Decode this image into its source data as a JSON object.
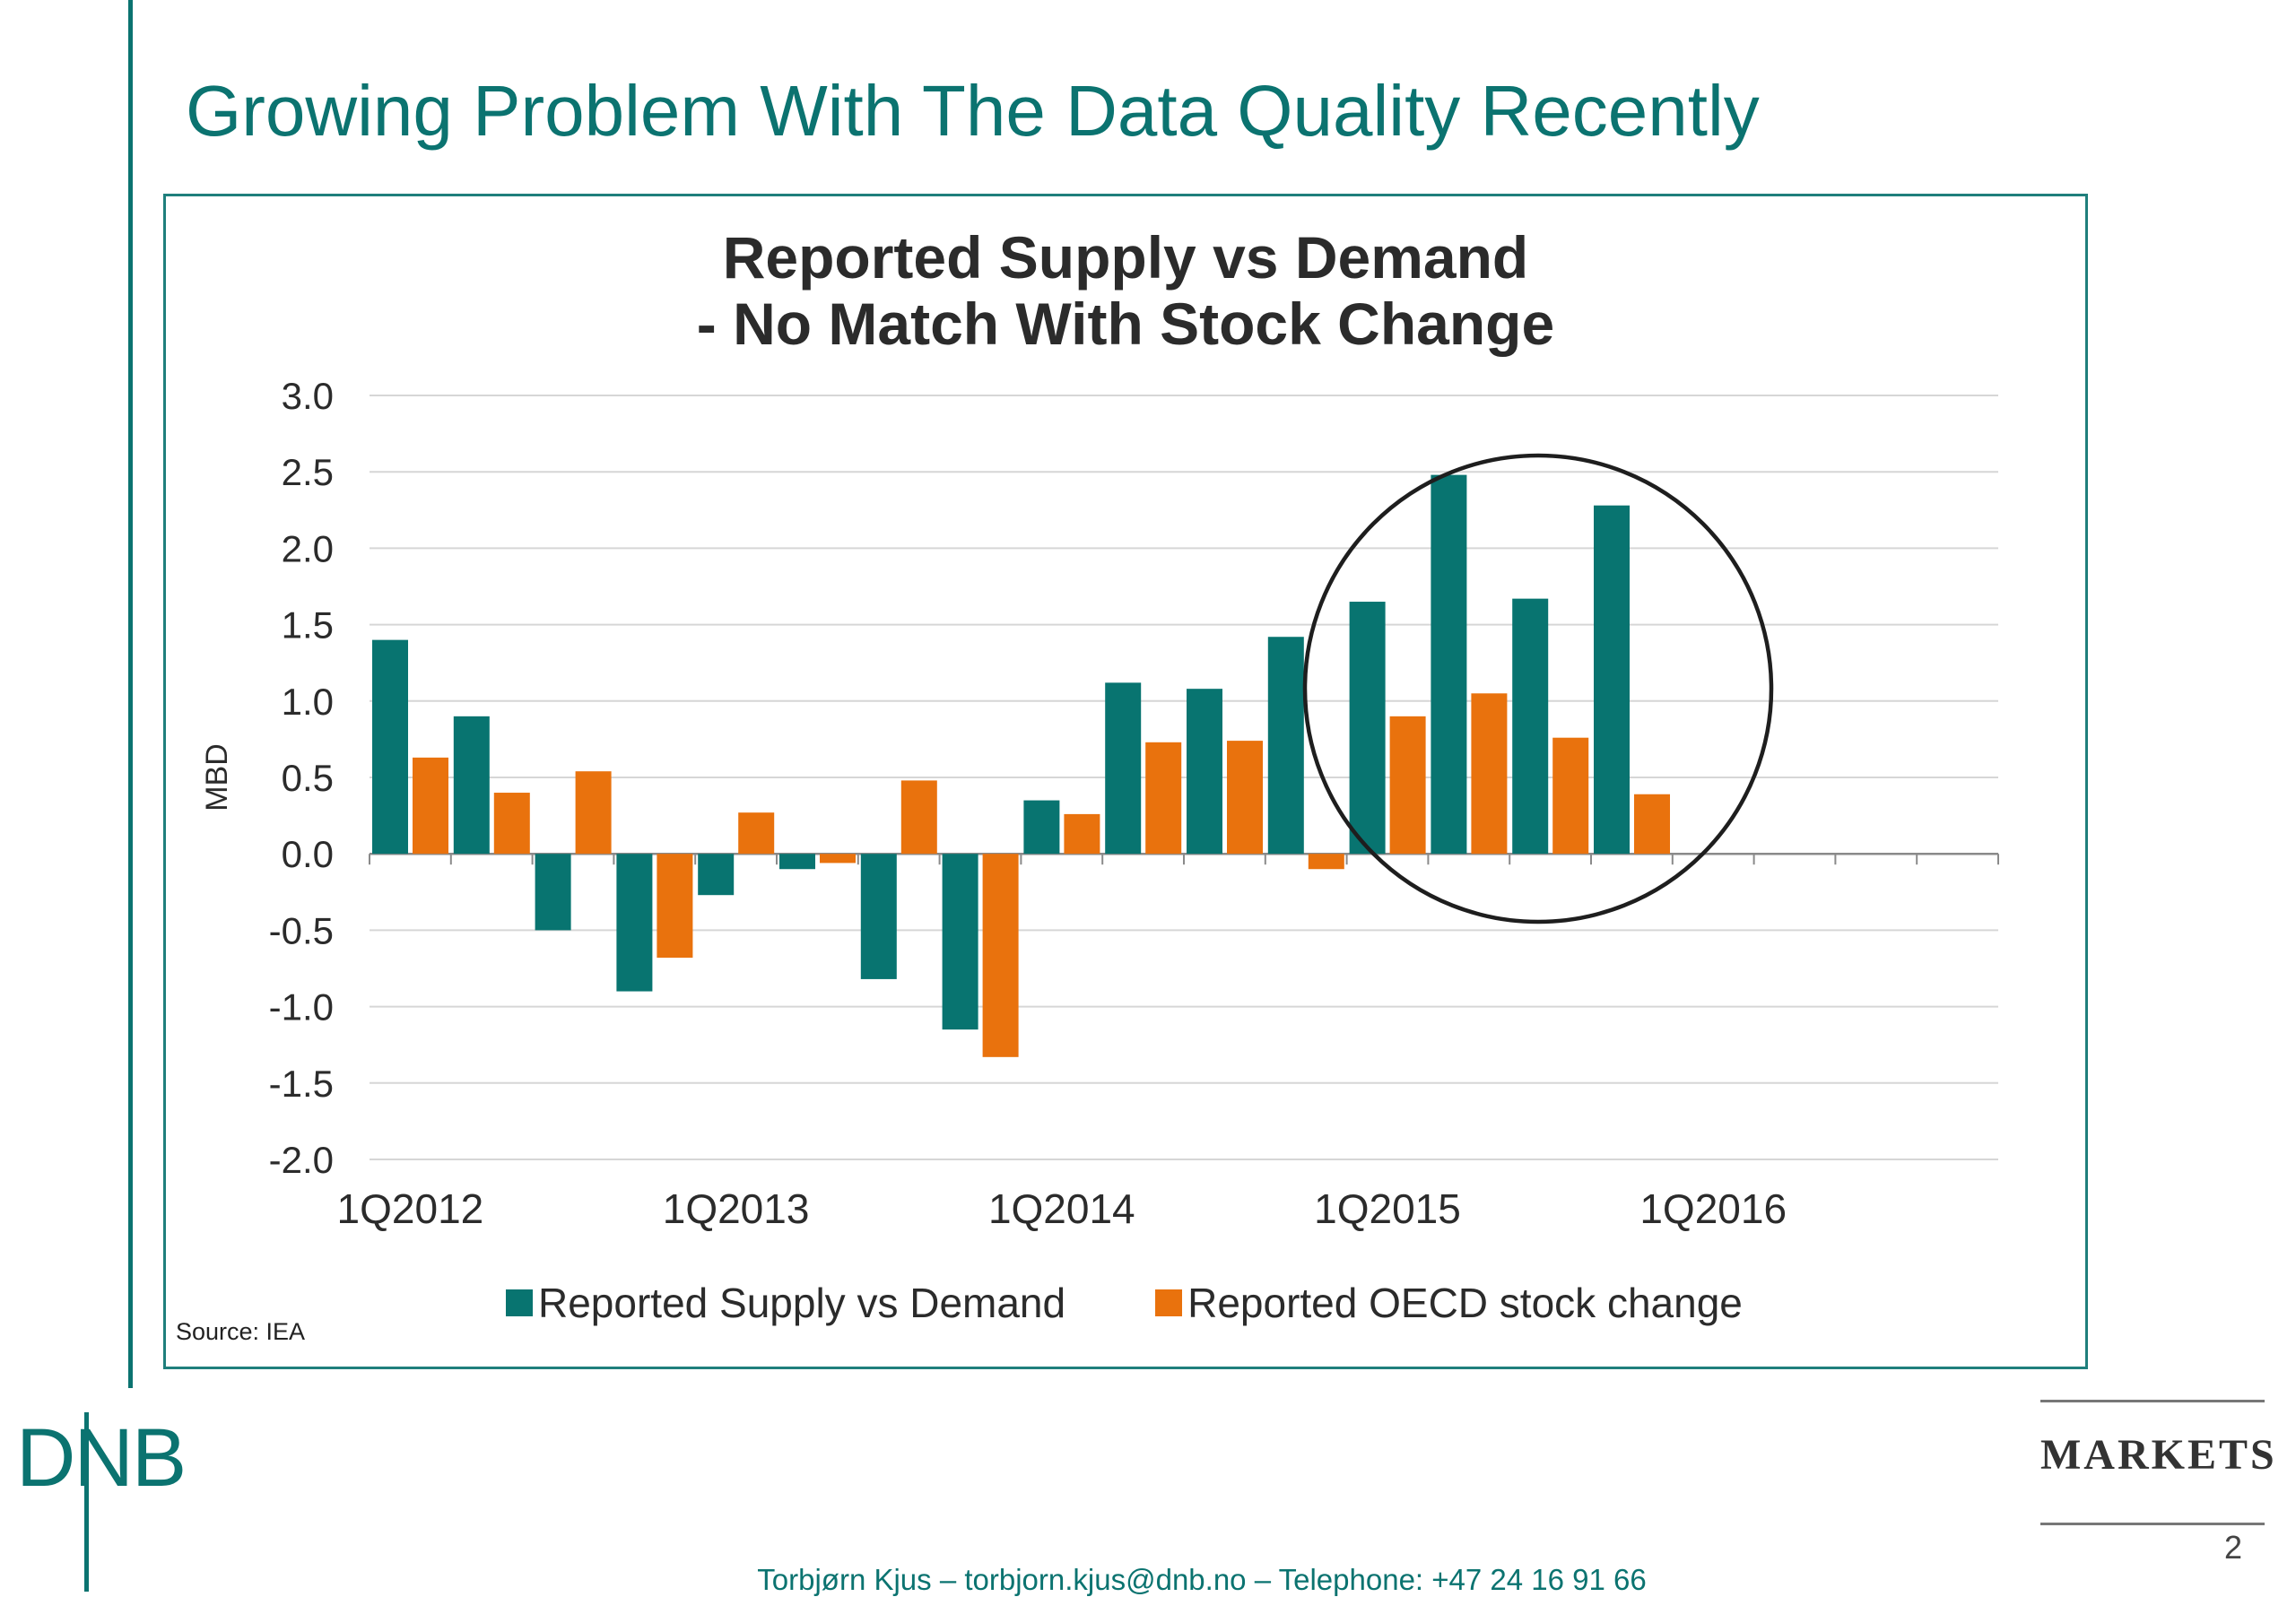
{
  "slide": {
    "title": "Growing Problem With The Data Quality Recently",
    "source": "Source: IEA",
    "page_number": "2",
    "footer": "Torbjørn Kjus – torbjorn.kjus@dnb.no – Telephone: +47 24 16 91 66",
    "markets_label": "MARKETS",
    "logo_text": "DNB",
    "accent_color": "#0b7370"
  },
  "chart_data": {
    "type": "bar",
    "title_lines": [
      "Reported Supply vs Demand",
      "- No Match With Stock Change"
    ],
    "ylabel": "MBD",
    "ylim": [
      -2.0,
      3.0
    ],
    "yticks": [
      "3.0",
      "2.5",
      "2.0",
      "1.5",
      "1.0",
      "0.5",
      "0.0",
      "-0.5",
      "-1.0",
      "-1.5",
      "-2.0"
    ],
    "x_tick_labels": [
      "1Q2012",
      "1Q2013",
      "1Q2014",
      "1Q2015",
      "1Q2016"
    ],
    "categories": [
      "1Q2012",
      "2Q2012",
      "3Q2012",
      "4Q2012",
      "1Q2013",
      "2Q2013",
      "3Q2013",
      "4Q2013",
      "1Q2014",
      "2Q2014",
      "3Q2014",
      "4Q2014",
      "1Q2015",
      "2Q2015",
      "3Q2015",
      "4Q2015",
      "1Q2016",
      "2Q2016",
      "3Q2016",
      "4Q2016"
    ],
    "series": [
      {
        "name": "Reported Supply vs Demand",
        "color": "#087470",
        "values": [
          1.4,
          0.9,
          -0.5,
          -0.9,
          -0.27,
          -0.1,
          -0.82,
          -1.15,
          0.35,
          1.12,
          1.08,
          1.42,
          1.65,
          2.48,
          1.67,
          2.28,
          null,
          null,
          null,
          null
        ]
      },
      {
        "name": "Reported OECD stock change",
        "color": "#e9720d",
        "values": [
          0.63,
          0.4,
          0.54,
          -0.68,
          0.27,
          -0.06,
          0.48,
          -1.33,
          0.26,
          0.73,
          0.74,
          -0.1,
          0.9,
          1.05,
          0.76,
          0.39,
          null,
          null,
          null,
          null
        ]
      }
    ],
    "grid": true,
    "legend_position": "bottom",
    "annotation": "circle highlighting 1Q2015–4Q2015"
  }
}
